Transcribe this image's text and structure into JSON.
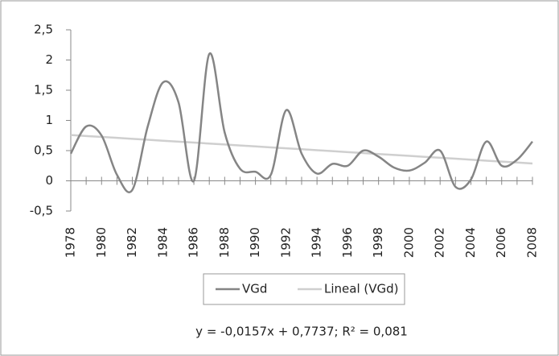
{
  "chart_data": {
    "type": "line",
    "x": [
      1978,
      1979,
      1980,
      1981,
      1982,
      1983,
      1984,
      1985,
      1986,
      1987,
      1988,
      1989,
      1990,
      1991,
      1992,
      1993,
      1994,
      1995,
      1996,
      1997,
      1998,
      1999,
      2000,
      2001,
      2002,
      2003,
      2004,
      2005,
      2006,
      2007,
      2008
    ],
    "series": [
      {
        "name": "VGd",
        "color": "#858585",
        "smooth": true,
        "values": [
          0.45,
          0.9,
          0.75,
          0.1,
          -0.15,
          0.9,
          1.63,
          1.3,
          0.0,
          2.1,
          0.8,
          0.2,
          0.15,
          0.1,
          1.17,
          0.45,
          0.12,
          0.28,
          0.25,
          0.5,
          0.4,
          0.22,
          0.17,
          0.3,
          0.5,
          -0.1,
          0.02,
          0.65,
          0.25,
          0.35,
          0.65
        ]
      },
      {
        "name": "Lineal (VGd)",
        "color": "#cfcfcf",
        "smooth": false,
        "values": [
          0.758,
          0.742,
          0.727,
          0.711,
          0.695,
          0.68,
          0.664,
          0.648,
          0.633,
          0.617,
          0.601,
          0.585,
          0.57,
          0.554,
          0.538,
          0.523,
          0.507,
          0.491,
          0.475,
          0.46,
          0.444,
          0.428,
          0.413,
          0.397,
          0.381,
          0.366,
          0.35,
          0.334,
          0.318,
          0.303,
          0.287
        ]
      }
    ],
    "xlim": [
      1978,
      2008
    ],
    "xticks": [
      1978,
      1980,
      1982,
      1984,
      1986,
      1988,
      1990,
      1992,
      1994,
      1996,
      1998,
      2000,
      2002,
      2004,
      2006,
      2008
    ],
    "ylim": [
      -0.5,
      2.5
    ],
    "yticks": [
      {
        "value": -0.5,
        "label": "-0,5"
      },
      0,
      {
        "value": 0.5,
        "label": "0,5"
      },
      1,
      {
        "value": 1.5,
        "label": "1,5"
      },
      2,
      {
        "value": 2.5,
        "label": "2,5"
      }
    ],
    "grid": false,
    "legend": "bottom",
    "annotation": "y = -0,0157x + 0,7737; R² = 0,081"
  }
}
